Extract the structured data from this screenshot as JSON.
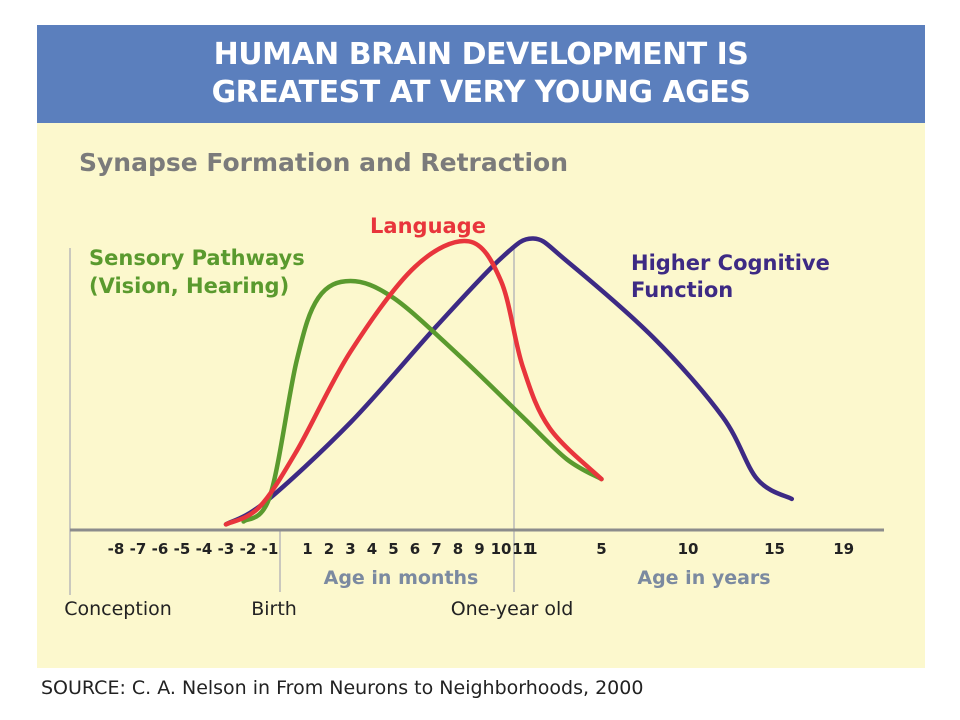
{
  "header": {
    "title_line1": "HUMAN BRAIN DEVELOPMENT IS",
    "title_line2": "GREATEST AT VERY YOUNG AGES"
  },
  "source": "SOURCE:  C. A. Nelson in From Neurons to Neighborhoods, 2000",
  "colors": {
    "banner": "#5b7fbd",
    "panel": "#fcf8cd",
    "sensory": "#5a9a2e",
    "language": "#e8353c",
    "cognitive": "#3d2a84",
    "axis_label": "#7b8aa0"
  },
  "chart_data": {
    "type": "line",
    "title": "Synapse Formation and Retraction",
    "y_axis": {
      "labels": false,
      "ticks": false
    },
    "x_axis": {
      "segments": [
        {
          "unit": "months before birth",
          "ticks": [
            "-8",
            "-7",
            "-6",
            "-5",
            "-4",
            "-3",
            "-2",
            "-1"
          ],
          "label": ""
        },
        {
          "unit": "months",
          "ticks": [
            "1",
            "2",
            "3",
            "4",
            "5",
            "6",
            "7",
            "8",
            "9",
            "10",
            "11"
          ],
          "label": "Age in months"
        },
        {
          "unit": "years",
          "ticks": [
            "1",
            "5",
            "10",
            "15",
            "19"
          ],
          "label": "Age in years"
        }
      ],
      "milestones": [
        "Conception",
        "Birth",
        "One-year old"
      ]
    },
    "series": [
      {
        "name": "Sensory Pathways",
        "name_line2": "(Vision, Hearing)",
        "points": [
          {
            "seg": "pre",
            "x": -2.2,
            "y": 3
          },
          {
            "seg": "pre",
            "x": -1,
            "y": 12
          },
          {
            "seg": "mo",
            "x": 0.5,
            "y": 60
          },
          {
            "seg": "mo",
            "x": 1.5,
            "y": 82
          },
          {
            "seg": "mo",
            "x": 3,
            "y": 88
          },
          {
            "seg": "mo",
            "x": 5,
            "y": 82
          },
          {
            "seg": "mo",
            "x": 8,
            "y": 62
          },
          {
            "seg": "mo",
            "x": 11,
            "y": 40
          },
          {
            "seg": "yr",
            "x": 3,
            "y": 25
          },
          {
            "seg": "yr",
            "x": 5,
            "y": 18
          }
        ]
      },
      {
        "name": "Language",
        "points": [
          {
            "seg": "pre",
            "x": -3,
            "y": 2
          },
          {
            "seg": "pre",
            "x": -1.5,
            "y": 8
          },
          {
            "seg": "mo",
            "x": 0.5,
            "y": 28
          },
          {
            "seg": "mo",
            "x": 3,
            "y": 63
          },
          {
            "seg": "mo",
            "x": 6,
            "y": 93
          },
          {
            "seg": "mo",
            "x": 8.5,
            "y": 102
          },
          {
            "seg": "mo",
            "x": 10,
            "y": 88
          },
          {
            "seg": "mo",
            "x": 11,
            "y": 58
          },
          {
            "seg": "yr",
            "x": 2,
            "y": 36
          },
          {
            "seg": "yr",
            "x": 5,
            "y": 18
          }
        ]
      },
      {
        "name": "Higher Cognitive",
        "name_line2": "Function",
        "points": [
          {
            "seg": "pre",
            "x": -3,
            "y": 2
          },
          {
            "seg": "pre",
            "x": -1.2,
            "y": 10
          },
          {
            "seg": "mo",
            "x": 3,
            "y": 38
          },
          {
            "seg": "mo",
            "x": 7,
            "y": 72
          },
          {
            "seg": "mo",
            "x": 10,
            "y": 96
          },
          {
            "seg": "mo",
            "x": 11.5,
            "y": 103
          },
          {
            "seg": "yr",
            "x": 3,
            "y": 95
          },
          {
            "seg": "yr",
            "x": 8,
            "y": 68
          },
          {
            "seg": "yr",
            "x": 12,
            "y": 40
          },
          {
            "seg": "yr",
            "x": 14,
            "y": 18
          },
          {
            "seg": "yr",
            "x": 16,
            "y": 11
          }
        ]
      }
    ]
  }
}
